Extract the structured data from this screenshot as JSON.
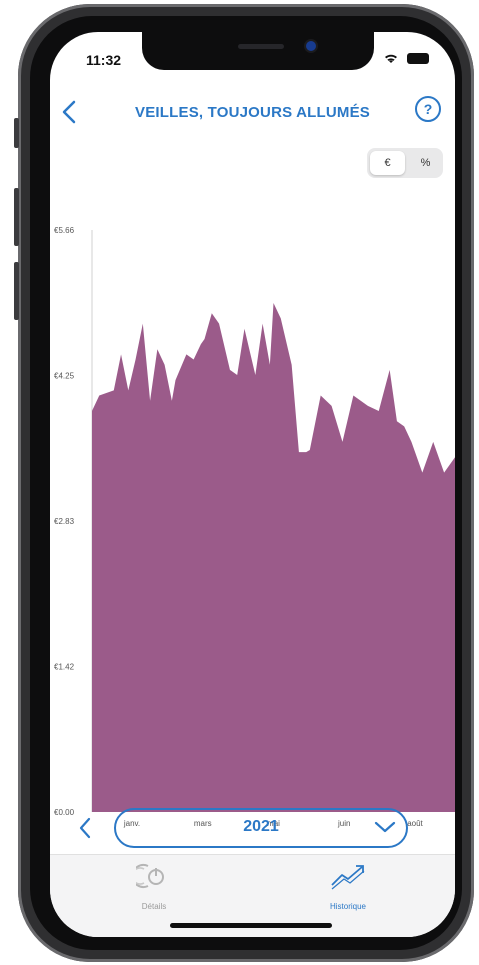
{
  "status": {
    "time": "11:32"
  },
  "header": {
    "title": "VEILLES, TOUJOURS ALLUMÉS",
    "help": "?"
  },
  "unit_toggle": {
    "euro": "€",
    "percent": "%"
  },
  "colors": {
    "accent": "#2b78c6",
    "area": "#9b5b8a"
  },
  "year_selector": {
    "year": "2021"
  },
  "tabs": [
    {
      "label": "Détails"
    },
    {
      "label": "Historique"
    }
  ],
  "chart_data": {
    "type": "area",
    "title": "",
    "xlabel": "",
    "ylabel": "",
    "ylim": [
      0,
      5.66
    ],
    "yticks": [
      "€5.66",
      "€4.25",
      "€2.83",
      "€1.42",
      "€0.00"
    ],
    "xticks": [
      "janv.",
      "mars",
      "mai",
      "juin",
      "août"
    ],
    "series": [
      {
        "name": "",
        "x": [
          0,
          0.02,
          0.06,
          0.08,
          0.1,
          0.12,
          0.14,
          0.16,
          0.17,
          0.18,
          0.2,
          0.22,
          0.23,
          0.26,
          0.28,
          0.3,
          0.31,
          0.33,
          0.35,
          0.38,
          0.4,
          0.42,
          0.45,
          0.47,
          0.49,
          0.5,
          0.52,
          0.55,
          0.57,
          0.59,
          0.6,
          0.63,
          0.66,
          0.69,
          0.72,
          0.76,
          0.79,
          0.82,
          0.84,
          0.86,
          0.88,
          0.91,
          0.94,
          0.97,
          1.0
        ],
        "values": [
          3.9,
          4.05,
          4.1,
          4.45,
          4.1,
          4.4,
          4.75,
          4.0,
          4.25,
          4.5,
          4.35,
          4.0,
          4.2,
          4.45,
          4.4,
          4.55,
          4.6,
          4.85,
          4.75,
          4.3,
          4.25,
          4.7,
          4.25,
          4.75,
          4.35,
          4.95,
          4.8,
          4.35,
          3.5,
          3.5,
          3.52,
          4.05,
          3.95,
          3.6,
          4.05,
          3.95,
          3.9,
          4.3,
          3.8,
          3.75,
          3.6,
          3.3,
          3.6,
          3.3,
          3.45
        ]
      }
    ]
  }
}
